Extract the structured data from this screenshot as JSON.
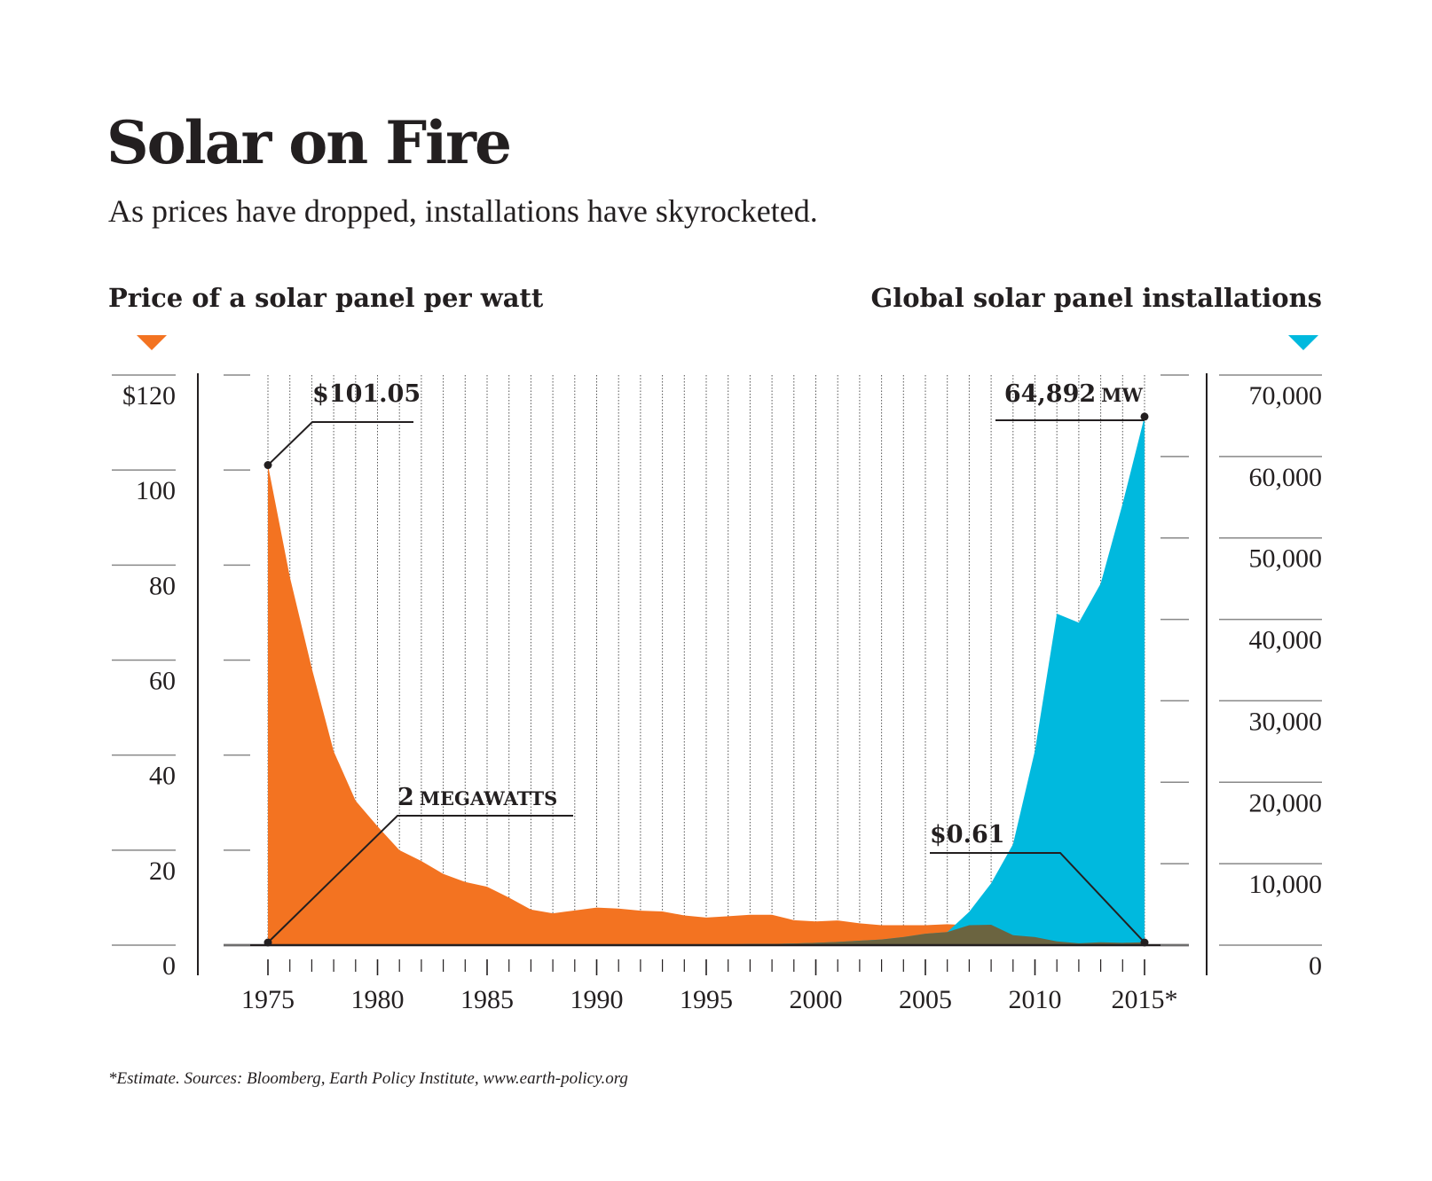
{
  "chart_data": {
    "type": "area",
    "title": "Solar on Fire",
    "subtitle": "As prices have dropped, installations have skyrocketed.",
    "x": [
      1975,
      1976,
      1977,
      1978,
      1979,
      1980,
      1981,
      1982,
      1983,
      1984,
      1985,
      1986,
      1987,
      1988,
      1989,
      1990,
      1991,
      1992,
      1993,
      1994,
      1995,
      1996,
      1997,
      1998,
      1999,
      2000,
      2001,
      2002,
      2003,
      2004,
      2005,
      2006,
      2007,
      2008,
      2009,
      2010,
      2011,
      2012,
      2013,
      2014,
      2015
    ],
    "x_tick_labels": [
      "1975",
      "1980",
      "1985",
      "1990",
      "1995",
      "2000",
      "2005",
      "2010",
      "2015*"
    ],
    "series": [
      {
        "name": "Price of a solar panel per watt",
        "axis": "left",
        "color": "#f37321",
        "values": [
          101.05,
          77.5,
          58.3,
          40.8,
          30.4,
          25,
          20,
          17.7,
          15,
          13.3,
          12.3,
          10,
          7.5,
          6.7,
          7.3,
          7.9,
          7.7,
          7.25,
          7.1,
          6.25,
          5.8,
          6.1,
          6.4,
          6.4,
          5.25,
          5.0,
          5.2,
          4.6,
          4.2,
          4.2,
          4.2,
          4.4,
          4.2,
          4.3,
          2.1,
          1.7,
          0.8,
          0.4,
          0.6,
          0.5,
          0.61
        ]
      },
      {
        "name": "Global solar panel installations",
        "axis": "right",
        "color": "#00b9de",
        "values": [
          2,
          3,
          4,
          6,
          8,
          10,
          14,
          18,
          22,
          27,
          32,
          40,
          46,
          55,
          65,
          70,
          75,
          80,
          85,
          90,
          80,
          90,
          130,
          150,
          200,
          280,
          390,
          550,
          690,
          1000,
          1400,
          1600,
          4100,
          7600,
          12400,
          23900,
          40700,
          39600,
          44400,
          54200,
          64892
        ]
      }
    ],
    "overlap_color": "#6b6440",
    "left_axis": {
      "ylim": [
        0,
        120
      ],
      "tick_labels": [
        "0",
        "20",
        "40",
        "60",
        "80",
        "100",
        "$120"
      ]
    },
    "right_axis": {
      "ylim": [
        0,
        70000
      ],
      "tick_labels": [
        "0",
        "10,000",
        "20,000",
        "30,000",
        "40,000",
        "50,000",
        "60,000",
        "70,000"
      ]
    },
    "grid": "vertical dotted lines each year",
    "annotations": {
      "price_start": "$101.05",
      "install_start_num": "2",
      "install_start_unit": "MEGAWATTS",
      "price_end": "$0.61",
      "install_end_num": "64,892",
      "install_end_unit": "MW"
    },
    "footnote": "*Estimate. Sources: Bloomberg, Earth Policy Institute, www.earth-policy.org"
  }
}
